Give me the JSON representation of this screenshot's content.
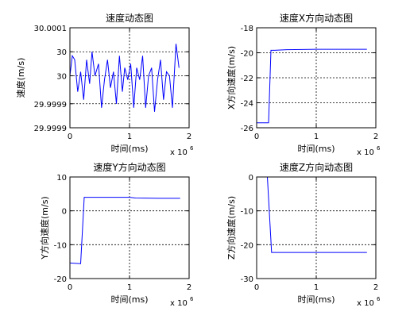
{
  "figure": {
    "background": "#ffffff",
    "axes_color": "#000000",
    "line_color": "#0000ff"
  },
  "chart_data": [
    {
      "type": "line",
      "title": "速度动态图",
      "xlabel": "时间(ms)",
      "ylabel": "速度(m/s)",
      "x_multiplier_base": "x 10",
      "x_multiplier_exp": "6",
      "xlim": [
        0,
        2
      ],
      "ylim": [
        29.99985,
        30.0001
      ],
      "grid": true,
      "x_ticks": [
        0,
        1,
        2
      ],
      "x_tick_labels": [
        "0",
        "1",
        "2"
      ],
      "y_ticks": [
        29.99985,
        29.99991,
        29.99998,
        30.00004,
        30.0001
      ],
      "y_tick_labels": [
        "29.9999",
        "29.9999",
        "30",
        "30",
        "30.0001"
      ],
      "series": [
        {
          "x": [
            0,
            0.04,
            0.08,
            0.13,
            0.18,
            0.23,
            0.28,
            0.33,
            0.37,
            0.42,
            0.48,
            0.53,
            0.58,
            0.63,
            0.68,
            0.73,
            0.78,
            0.83,
            0.88,
            0.92,
            0.97,
            1.02,
            1.07,
            1.12,
            1.17,
            1.22,
            1.27,
            1.32,
            1.37,
            1.42,
            1.47,
            1.52,
            1.57,
            1.62,
            1.67,
            1.72,
            1.78,
            1.83
          ],
          "y": [
            29.99998,
            30.00003,
            30.00002,
            29.99994,
            29.99999,
            29.99992,
            30.00002,
            29.99996,
            30.00004,
            29.99998,
            30.00001,
            29.9999,
            29.99997,
            30.00002,
            29.99995,
            29.99999,
            29.99991,
            30.00003,
            29.99994,
            30,
            29.99997,
            30.00001,
            29.9999,
            30,
            29.99997,
            30.00003,
            29.9999,
            29.99998,
            30,
            29.99989,
            29.99997,
            30.00002,
            29.99992,
            29.99999,
            29.99998,
            29.9999,
            30.00006,
            30
          ]
        }
      ]
    },
    {
      "type": "line",
      "title": "速度X方向动态图",
      "xlabel": "时间(ms)",
      "ylabel": "X方向速度(m/s)",
      "x_multiplier_base": "x 10",
      "x_multiplier_exp": "6",
      "xlim": [
        0,
        2
      ],
      "ylim": [
        -26,
        -18
      ],
      "grid": true,
      "x_ticks": [
        0,
        1,
        2
      ],
      "x_tick_labels": [
        "0",
        "1",
        "2"
      ],
      "y_ticks": [
        -26,
        -24,
        -22,
        -20,
        -18
      ],
      "y_tick_labels": [
        "-26",
        "-24",
        "-22",
        "-20",
        "-18"
      ],
      "series": [
        {
          "x": [
            0,
            0.2,
            0.24,
            0.3,
            0.5,
            1.0,
            1.5,
            1.85
          ],
          "y": [
            -25.6,
            -25.6,
            -19.8,
            -19.8,
            -19.75,
            -19.72,
            -19.72,
            -19.72
          ]
        }
      ]
    },
    {
      "type": "line",
      "title": "速度Y方向动态图",
      "xlabel": "时间(ms)",
      "ylabel": "Y方向速度(m/s)",
      "x_multiplier_base": "x 10",
      "x_multiplier_exp": "6",
      "xlim": [
        0,
        2
      ],
      "ylim": [
        -20,
        10
      ],
      "grid": true,
      "x_ticks": [
        0,
        1,
        2
      ],
      "x_tick_labels": [
        "0",
        "1",
        "2"
      ],
      "y_ticks": [
        -20,
        -10,
        0,
        10
      ],
      "y_tick_labels": [
        "-20",
        "-10",
        "0",
        "10"
      ],
      "series": [
        {
          "x": [
            0,
            0.18,
            0.24,
            0.5,
            1.0,
            1.1,
            1.5,
            1.85
          ],
          "y": [
            -15.4,
            -15.6,
            4,
            4,
            4,
            3.8,
            3.7,
            3.7
          ]
        }
      ]
    },
    {
      "type": "line",
      "title": "速度Z方向动态图",
      "xlabel": "时间(ms)",
      "ylabel": "Z方向速度(m/s)",
      "x_multiplier_base": "x 10",
      "x_multiplier_exp": "6",
      "xlim": [
        0,
        2
      ],
      "ylim": [
        -30,
        0
      ],
      "grid": true,
      "x_ticks": [
        0,
        1,
        2
      ],
      "x_tick_labels": [
        "0",
        "1",
        "2"
      ],
      "y_ticks": [
        -30,
        -20,
        -10,
        0
      ],
      "y_tick_labels": [
        "-30",
        "-20",
        "-10",
        "0"
      ],
      "series": [
        {
          "x": [
            0,
            0.18,
            0.25,
            0.5,
            1.0,
            1.5,
            1.85
          ],
          "y": [
            0,
            0,
            -22.3,
            -22.3,
            -22.3,
            -22.3,
            -22.3
          ]
        }
      ]
    }
  ]
}
